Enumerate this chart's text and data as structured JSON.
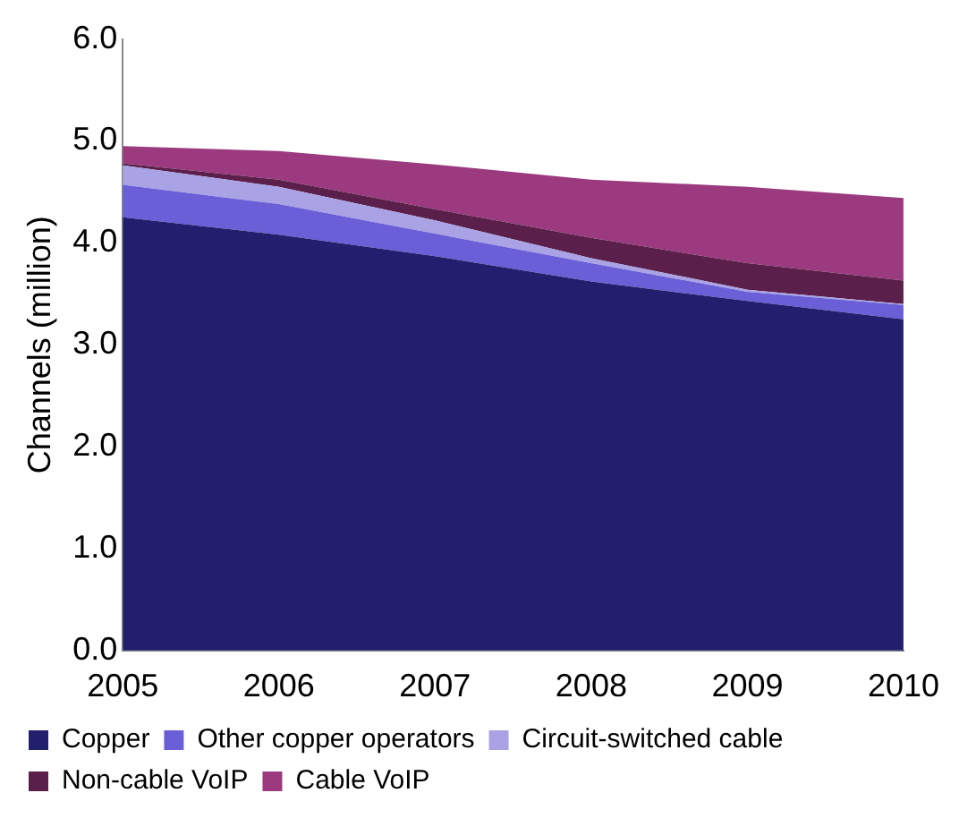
{
  "chart_data": {
    "type": "area",
    "stacked": true,
    "ylabel": "Channels (million)",
    "x": [
      2005,
      2006,
      2007,
      2008,
      2009,
      2010
    ],
    "xlim": [
      2005,
      2010
    ],
    "xticks": [
      2005,
      2006,
      2007,
      2008,
      2009,
      2010
    ],
    "ylim": [
      0,
      6
    ],
    "yticks": [
      {
        "value": 0,
        "label": "0.0"
      },
      {
        "value": 1,
        "label": "1.0"
      },
      {
        "value": 2,
        "label": "2.0"
      },
      {
        "value": 3,
        "label": "3.0"
      },
      {
        "value": 4,
        "label": "4.0"
      },
      {
        "value": 5,
        "label": "5.0"
      },
      {
        "value": 6,
        "label": "6.0"
      }
    ],
    "grid": false,
    "legend": "bottom",
    "series": [
      {
        "name": "Copper",
        "color": "#221f6e",
        "values": [
          4.25,
          4.08,
          3.87,
          3.62,
          3.43,
          3.25
        ]
      },
      {
        "name": "Other copper operators",
        "color": "#6a5fd6",
        "values": [
          0.32,
          0.3,
          0.22,
          0.18,
          0.09,
          0.14
        ]
      },
      {
        "name": "Circuit-switched cable",
        "color": "#a9a3e6",
        "values": [
          0.19,
          0.17,
          0.13,
          0.05,
          0.02,
          0.01
        ]
      },
      {
        "name": "Non-cable VoIP",
        "color": "#5a1f4a",
        "values": [
          0.02,
          0.07,
          0.11,
          0.2,
          0.26,
          0.23
        ]
      },
      {
        "name": "Cable VoIP",
        "color": "#9b3a7e",
        "values": [
          0.17,
          0.28,
          0.44,
          0.57,
          0.75,
          0.81
        ]
      }
    ]
  }
}
